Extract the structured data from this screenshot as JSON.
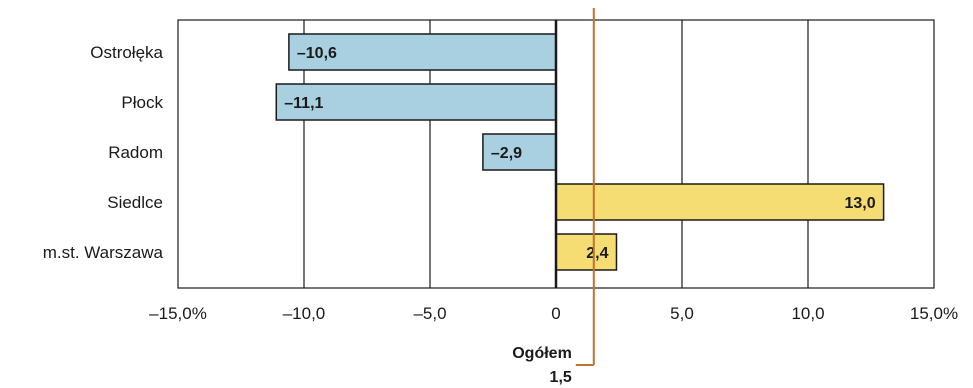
{
  "chart_data": {
    "type": "bar",
    "orientation": "horizontal",
    "categories": [
      "Ostrołęka",
      "Płock",
      "Radom",
      "Siedlce",
      "m.st. Warszawa"
    ],
    "values": [
      -10.6,
      -11.1,
      -2.9,
      13.0,
      2.4
    ],
    "value_labels": [
      "–10,6",
      "–11,1",
      "–2,9",
      "13,0",
      "2,4"
    ],
    "xlim": [
      -15,
      15
    ],
    "xticks": [
      -15,
      -10,
      -5,
      0,
      5,
      10,
      15
    ],
    "xtick_labels": [
      "–15,0%",
      "–10,0",
      "–5,0",
      "0",
      "5,0",
      "10,0",
      "15,0%"
    ],
    "grid": "vertical",
    "colors": {
      "negative": "#a8d0e0",
      "positive": "#f5dc73",
      "reference": "#c0732a",
      "border": "#1a1a1a"
    },
    "reference_line": {
      "value": 1.5,
      "label": "Ogółem",
      "value_label": "1,5"
    }
  }
}
